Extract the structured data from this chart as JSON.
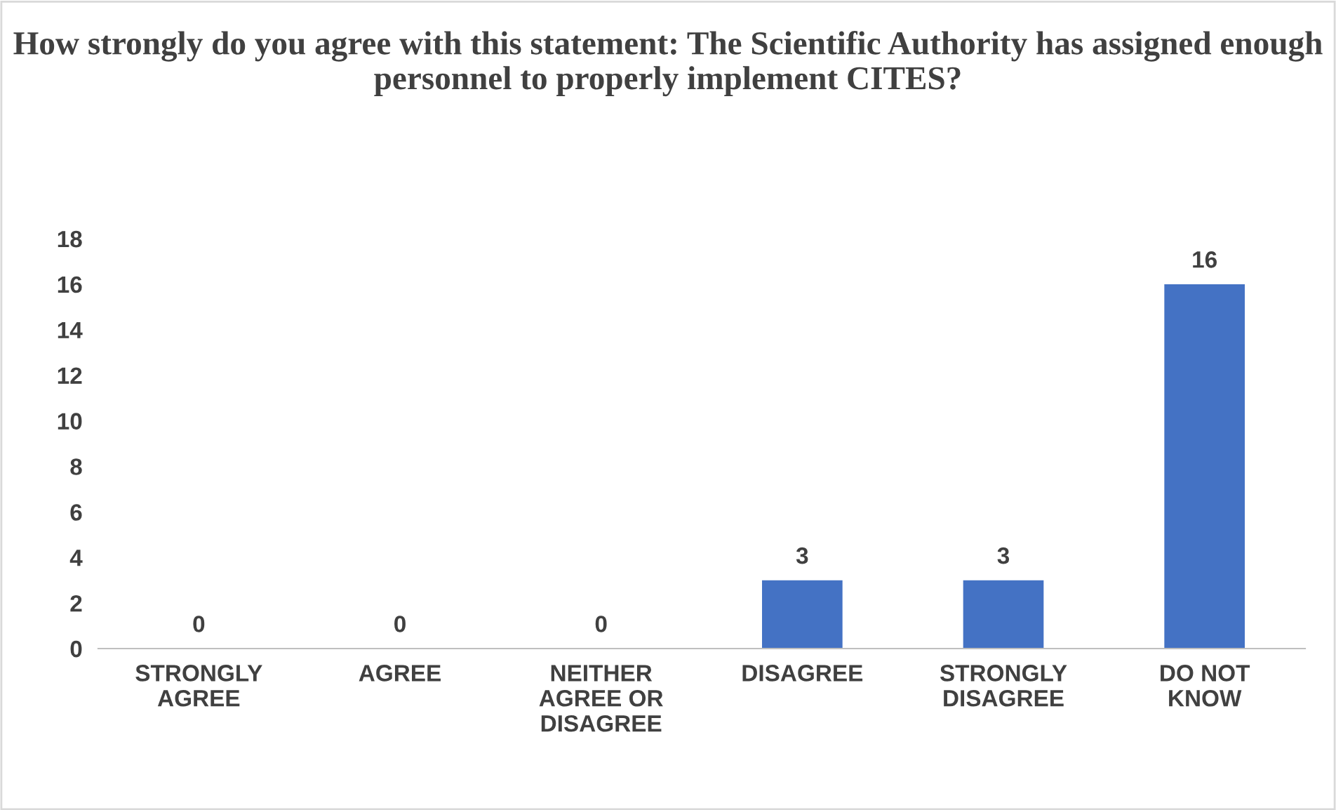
{
  "chart_data": {
    "type": "bar",
    "title": "How strongly do you agree with this statement: The Scientific Authority has assigned enough personnel to properly implement CITES?",
    "categories": [
      "STRONGLY\nAGREE",
      "AGREE",
      "NEITHER\nAGREE OR\nDISAGREE",
      "DISAGREE",
      "STRONGLY\nDISAGREE",
      "DO NOT\nKNOW"
    ],
    "values": [
      0,
      0,
      0,
      3,
      3,
      16
    ],
    "color": "#4472c4",
    "ylim": [
      0,
      18
    ],
    "yticks": [
      0,
      2,
      4,
      6,
      8,
      10,
      12,
      14,
      16,
      18
    ],
    "data_labels": true,
    "grid": false,
    "legend": false
  }
}
